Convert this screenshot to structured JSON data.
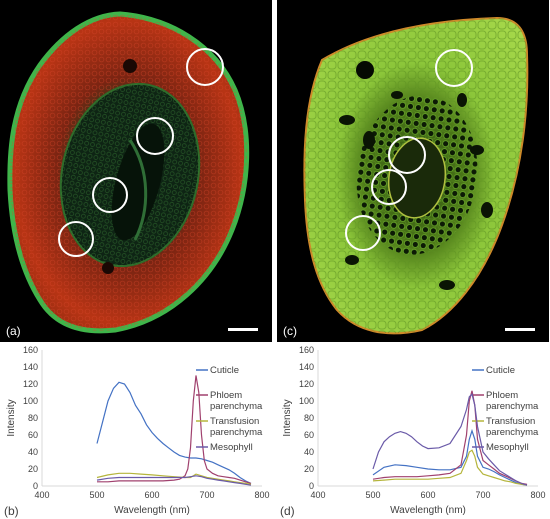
{
  "panels": {
    "a": {
      "label": "(a)"
    },
    "c": {
      "label": "(c)"
    }
  },
  "colors": {
    "cuticle": "#4472c4",
    "phloem": "#a0416e",
    "transfusion": "#b5b53c",
    "mesophyll": "#6a5aa8",
    "axis": "#d9d9d9",
    "text": "#404040"
  },
  "chart_data": [
    {
      "type": "line",
      "panel_label": "(b)",
      "xlabel": "Wavelength (nm)",
      "ylabel": "Intensity",
      "xlim": [
        400,
        800
      ],
      "ylim": [
        0,
        160
      ],
      "xticks": [
        400,
        500,
        600,
        700,
        800
      ],
      "yticks": [
        0,
        20,
        40,
        60,
        80,
        100,
        120,
        140,
        160
      ],
      "legend_position": "right",
      "series": [
        {
          "name": "Cuticle",
          "color": "#4472c4",
          "x": [
            500,
            510,
            520,
            530,
            540,
            550,
            560,
            570,
            580,
            590,
            600,
            610,
            620,
            630,
            640,
            650,
            660,
            670,
            680,
            690,
            700,
            710,
            720,
            730,
            740,
            750,
            760,
            770,
            780
          ],
          "y": [
            50,
            75,
            100,
            115,
            122,
            120,
            110,
            95,
            85,
            72,
            63,
            56,
            50,
            45,
            40,
            36,
            34,
            33,
            33,
            32,
            30,
            28,
            25,
            22,
            19,
            15,
            10,
            6,
            3
          ]
        },
        {
          "name": "Phloem parenchyma",
          "color": "#a0416e",
          "x": [
            500,
            520,
            540,
            560,
            580,
            600,
            620,
            640,
            650,
            660,
            665,
            670,
            675,
            680,
            685,
            690,
            695,
            700,
            710,
            720,
            730,
            740,
            750,
            760,
            770,
            780
          ],
          "y": [
            5,
            5,
            6,
            6,
            6,
            6,
            6,
            7,
            8,
            12,
            20,
            45,
            100,
            130,
            110,
            60,
            30,
            20,
            15,
            12,
            11,
            10,
            9,
            7,
            5,
            3
          ]
        },
        {
          "name": "Transfusion parenchyma",
          "color": "#b5b53c",
          "x": [
            500,
            520,
            540,
            560,
            580,
            600,
            620,
            640,
            660,
            670,
            680,
            690,
            700,
            710,
            720,
            730,
            740,
            750,
            760,
            770,
            780
          ],
          "y": [
            10,
            13,
            15,
            15,
            14,
            13,
            12,
            11,
            10,
            10,
            14,
            12,
            10,
            9,
            8,
            7,
            6,
            5,
            4,
            3,
            2
          ]
        },
        {
          "name": "Mesophyll",
          "color": "#6a5aa8",
          "x": [
            500,
            520,
            540,
            560,
            580,
            600,
            620,
            640,
            660,
            670,
            680,
            690,
            700,
            710,
            720,
            730,
            740,
            750,
            760,
            770,
            780
          ],
          "y": [
            7,
            9,
            10,
            10,
            10,
            10,
            10,
            10,
            10,
            11,
            12,
            11,
            9,
            8,
            7,
            6,
            5,
            4,
            3,
            2,
            1
          ]
        }
      ]
    },
    {
      "type": "line",
      "panel_label": "(d)",
      "xlabel": "Wavelength (nm)",
      "ylabel": "Intensity",
      "xlim": [
        400,
        800
      ],
      "ylim": [
        0,
        160
      ],
      "xticks": [
        400,
        500,
        600,
        700,
        800
      ],
      "yticks": [
        0,
        20,
        40,
        60,
        80,
        100,
        120,
        140,
        160
      ],
      "legend_position": "right",
      "series": [
        {
          "name": "Cuticle",
          "color": "#4472c4",
          "x": [
            500,
            520,
            540,
            560,
            580,
            600,
            620,
            640,
            660,
            670,
            675,
            680,
            685,
            690,
            700,
            710,
            720,
            730,
            740,
            750,
            760,
            770,
            780
          ],
          "y": [
            13,
            22,
            25,
            24,
            22,
            20,
            19,
            19,
            22,
            35,
            55,
            65,
            55,
            35,
            22,
            20,
            17,
            13,
            10,
            7,
            4,
            2,
            1
          ]
        },
        {
          "name": "Phloem parenchyma",
          "color": "#a0416e",
          "x": [
            500,
            520,
            540,
            560,
            580,
            600,
            620,
            640,
            660,
            670,
            675,
            680,
            685,
            690,
            700,
            710,
            720,
            730,
            740,
            750,
            760,
            770,
            780
          ],
          "y": [
            8,
            10,
            11,
            11,
            11,
            12,
            13,
            15,
            25,
            60,
            100,
            112,
            95,
            55,
            30,
            25,
            20,
            15,
            12,
            9,
            6,
            3,
            2
          ]
        },
        {
          "name": "Transfusion parenchyma",
          "color": "#b5b53c",
          "x": [
            500,
            520,
            540,
            560,
            580,
            600,
            620,
            640,
            660,
            670,
            675,
            680,
            685,
            690,
            700,
            710,
            720,
            730,
            740,
            750,
            760,
            770,
            780
          ],
          "y": [
            6,
            7,
            8,
            8,
            8,
            8,
            9,
            10,
            15,
            30,
            40,
            42,
            35,
            22,
            14,
            12,
            10,
            8,
            6,
            5,
            3,
            2,
            1
          ]
        },
        {
          "name": "Mesophyll",
          "color": "#6a5aa8",
          "x": [
            500,
            510,
            520,
            530,
            540,
            550,
            560,
            570,
            580,
            590,
            600,
            620,
            640,
            660,
            670,
            675,
            680,
            685,
            690,
            700,
            710,
            720,
            730,
            740,
            750,
            760,
            770,
            780
          ],
          "y": [
            20,
            40,
            52,
            58,
            62,
            64,
            62,
            58,
            52,
            47,
            44,
            45,
            50,
            70,
            90,
            105,
            108,
            95,
            70,
            40,
            32,
            25,
            18,
            14,
            10,
            6,
            3,
            1
          ]
        }
      ]
    }
  ]
}
